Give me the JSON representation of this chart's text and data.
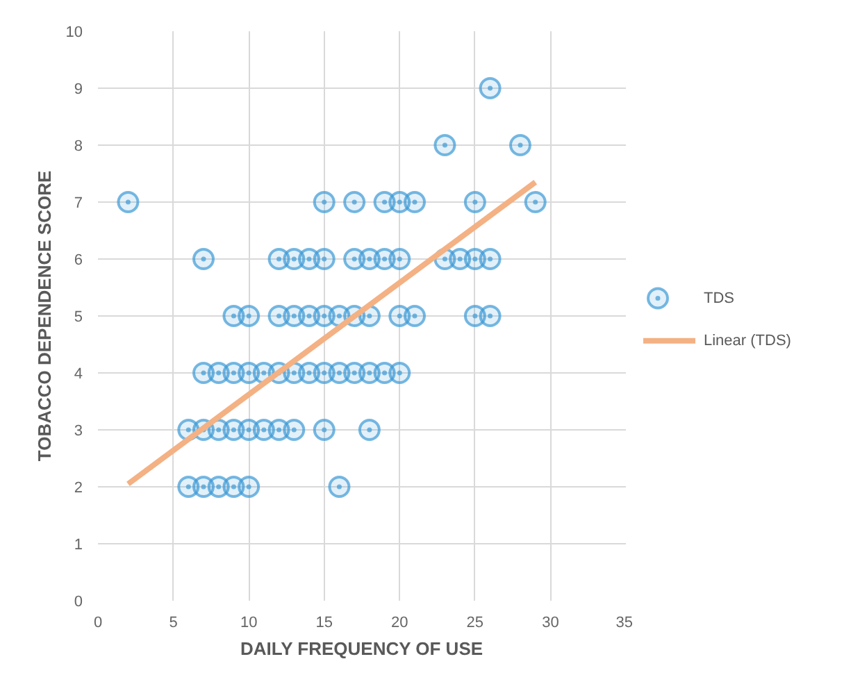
{
  "chart_data": {
    "type": "scatter",
    "xlabel": "DAILY FREQUENCY OF USE",
    "ylabel": "TOBACCO DEPENDENCE SCORE",
    "xlim": [
      0,
      35
    ],
    "xticks": [
      0,
      5,
      10,
      15,
      20,
      25,
      30,
      35
    ],
    "ylim": [
      0,
      10
    ],
    "yticks": [
      0,
      1,
      2,
      3,
      4,
      5,
      6,
      7,
      8,
      9,
      10
    ],
    "grid": true,
    "legend": "right",
    "marker": "circle",
    "series": [
      {
        "name": "TDS",
        "color": "#3d9ad6",
        "x": [
          26,
          23,
          28,
          2,
          15,
          17,
          19,
          20,
          21,
          25,
          29,
          7,
          12,
          13,
          14,
          15,
          17,
          18,
          19,
          20,
          23,
          24,
          25,
          26,
          9,
          10,
          12,
          13,
          14,
          15,
          16,
          17,
          18,
          20,
          21,
          25,
          26,
          7,
          8,
          9,
          10,
          11,
          12,
          13,
          14,
          15,
          16,
          17,
          18,
          19,
          20,
          6,
          7,
          8,
          9,
          10,
          11,
          12,
          13,
          15,
          18,
          6,
          7,
          8,
          9,
          10,
          16
        ],
        "values": [
          9,
          8,
          8,
          7,
          7,
          7,
          7,
          7,
          7,
          7,
          7,
          6,
          6,
          6,
          6,
          6,
          6,
          6,
          6,
          6,
          6,
          6,
          6,
          6,
          5,
          5,
          5,
          5,
          5,
          5,
          5,
          5,
          5,
          5,
          5,
          5,
          5,
          4,
          4,
          4,
          4,
          4,
          4,
          4,
          4,
          4,
          4,
          4,
          4,
          4,
          4,
          3,
          3,
          3,
          3,
          3,
          3,
          3,
          3,
          3,
          3,
          2,
          2,
          2,
          2,
          2,
          2
        ]
      },
      {
        "name": "Linear (TDS)",
        "type": "line",
        "marker": "none",
        "color": "#f4b183",
        "x": [
          2,
          29
        ],
        "values": [
          2.05,
          7.35
        ]
      }
    ]
  }
}
